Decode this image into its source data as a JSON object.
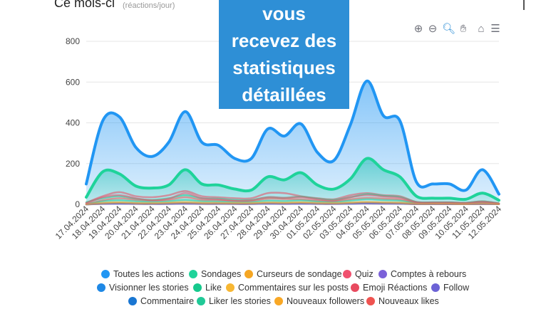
{
  "header": {
    "title": "Ce mois-ci",
    "subtitle": "(réactions/jour)"
  },
  "banner": {
    "lines": [
      "vous",
      "recevez des",
      "statistiques",
      "détaillées"
    ],
    "color": "#2e8fd6"
  },
  "toolbar": {
    "icons": [
      "zoom-in-icon",
      "zoom-out-icon",
      "zoom-selection-icon",
      "pan-hand-icon",
      "home-reset-icon",
      "menu-icon"
    ]
  },
  "chart_data": {
    "type": "area",
    "x": [
      "17.04.2024",
      "18.04.2024",
      "19.04.2024",
      "20.04.2024",
      "21.04.2024",
      "22.04.2024",
      "23.04.2024",
      "24.04.2024",
      "25.04.2024",
      "26.04.2024",
      "27.04.2024",
      "28.04.2024",
      "29.04.2024",
      "30.04.2024",
      "01.05.2024",
      "02.05.2024",
      "03.05.2024",
      "04.05.2024",
      "05.05.2024",
      "06.05.2024",
      "07.05.2024",
      "08.05.2024",
      "09.05.2024",
      "10.05.2024",
      "11.05.2024",
      "12.05.2024"
    ],
    "ylim": [
      0,
      800
    ],
    "yticks": [
      0,
      200,
      400,
      600,
      800
    ],
    "grid": true,
    "legend_position": "bottom",
    "series": [
      {
        "name": "Toutes les actions",
        "color": "#2196f3",
        "fill": true,
        "values": [
          100,
          410,
          430,
          280,
          235,
          305,
          455,
          305,
          290,
          225,
          225,
          370,
          335,
          395,
          255,
          215,
          390,
          605,
          435,
          410,
          110,
          100,
          100,
          70,
          170,
          50
        ]
      },
      {
        "name": "Sondages",
        "color": "#1fd39a",
        "fill": true,
        "values": [
          35,
          160,
          150,
          90,
          80,
          95,
          170,
          100,
          95,
          75,
          70,
          135,
          120,
          155,
          95,
          75,
          125,
          225,
          170,
          135,
          40,
          30,
          30,
          25,
          55,
          20
        ]
      },
      {
        "name": "Curseurs de sondage",
        "color": "#f5a623",
        "values": [
          0,
          5,
          8,
          5,
          4,
          6,
          8,
          5,
          5,
          4,
          4,
          7,
          6,
          8,
          5,
          4,
          7,
          10,
          8,
          6,
          2,
          2,
          2,
          1,
          3,
          1
        ]
      },
      {
        "name": "Quiz",
        "color": "#f0506e",
        "values": [
          5,
          35,
          45,
          30,
          20,
          28,
          55,
          30,
          25,
          18,
          20,
          35,
          32,
          35,
          25,
          18,
          35,
          45,
          38,
          32,
          10,
          8,
          8,
          6,
          12,
          4
        ]
      },
      {
        "name": "Comptes à rebours",
        "color": "#7b61d9",
        "values": [
          0,
          3,
          4,
          3,
          2,
          3,
          5,
          3,
          3,
          2,
          2,
          4,
          3,
          4,
          3,
          2,
          4,
          6,
          5,
          4,
          1,
          1,
          1,
          1,
          2,
          1
        ]
      },
      {
        "name": "Visionner les stories",
        "color": "#1e88e5",
        "values": [
          0,
          4,
          5,
          4,
          3,
          4,
          6,
          4,
          4,
          3,
          3,
          5,
          4,
          5,
          4,
          3,
          5,
          7,
          6,
          5,
          2,
          2,
          2,
          1,
          3,
          1
        ]
      },
      {
        "name": "Like",
        "color": "#16c98d",
        "values": [
          10,
          30,
          40,
          28,
          22,
          30,
          45,
          30,
          28,
          22,
          22,
          35,
          32,
          38,
          28,
          22,
          35,
          50,
          42,
          36,
          12,
          10,
          10,
          8,
          15,
          5
        ]
      },
      {
        "name": "Commentaires sur les posts",
        "color": "#f7b733",
        "values": [
          0,
          8,
          10,
          7,
          6,
          8,
          12,
          8,
          7,
          6,
          6,
          9,
          8,
          10,
          7,
          6,
          9,
          12,
          10,
          9,
          3,
          3,
          3,
          2,
          4,
          1
        ]
      },
      {
        "name": "Emoji Réactions",
        "color": "#e84a5f",
        "values": [
          8,
          40,
          60,
          40,
          35,
          45,
          65,
          40,
          35,
          30,
          30,
          55,
          55,
          40,
          30,
          25,
          45,
          55,
          45,
          40,
          12,
          10,
          10,
          8,
          15,
          5
        ]
      },
      {
        "name": "Follow",
        "color": "#6c63d6",
        "values": [
          0,
          2,
          3,
          2,
          2,
          2,
          3,
          2,
          2,
          2,
          2,
          3,
          2,
          3,
          2,
          2,
          3,
          4,
          3,
          3,
          1,
          1,
          1,
          1,
          1,
          1
        ]
      },
      {
        "name": "Commentaire",
        "color": "#1976d2",
        "values": [
          0,
          3,
          4,
          3,
          2,
          3,
          4,
          3,
          3,
          2,
          2,
          3,
          3,
          4,
          3,
          2,
          3,
          5,
          4,
          3,
          1,
          1,
          1,
          1,
          2,
          1
        ]
      },
      {
        "name": "Liker les stories",
        "color": "#20c997",
        "values": [
          0,
          15,
          20,
          15,
          12,
          15,
          22,
          15,
          14,
          11,
          11,
          18,
          16,
          19,
          14,
          11,
          18,
          25,
          21,
          18,
          6,
          5,
          5,
          4,
          8,
          3
        ]
      },
      {
        "name": "Nouveaux followers",
        "color": "#f9a825",
        "values": [
          0,
          2,
          3,
          2,
          2,
          2,
          3,
          2,
          2,
          2,
          2,
          3,
          2,
          3,
          2,
          2,
          3,
          4,
          3,
          3,
          1,
          1,
          1,
          1,
          1,
          1
        ]
      },
      {
        "name": "Nouveaux likes",
        "color": "#ef5350",
        "values": [
          0,
          20,
          30,
          22,
          18,
          22,
          35,
          22,
          20,
          16,
          16,
          28,
          26,
          25,
          18,
          15,
          25,
          32,
          28,
          24,
          8,
          6,
          6,
          5,
          10,
          3
        ]
      }
    ]
  }
}
